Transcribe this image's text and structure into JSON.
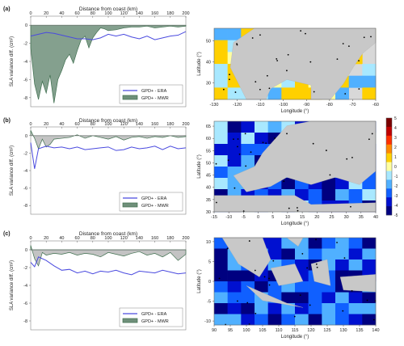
{
  "colors": {
    "era_line": "#4a4adf",
    "mwr_fill": "#6f8f7a",
    "mwr_stroke": "#3f6f4f",
    "land": "#c8c8c8",
    "sea_neutral": "#d8d8d8"
  },
  "colorbar": {
    "ticks": [
      "5",
      "4",
      "3",
      "2",
      "1",
      "0",
      "-1",
      "-2",
      "-3",
      "-4",
      "-5"
    ],
    "colors": [
      "#7a0000",
      "#c00000",
      "#ff3000",
      "#ff8800",
      "#ffd000",
      "#ffffa0",
      "#a8e8ff",
      "#50b0ff",
      "#1060ff",
      "#0010d0",
      "#000080"
    ],
    "range": [
      -5,
      5
    ]
  },
  "chart_data": [
    {
      "type": "line",
      "panel": "(a)",
      "xlabel": "Distance from coast (km)",
      "ylabel": "SLA variance diff. (cm²)",
      "x_ticks": [
        "0",
        "20",
        "40",
        "60",
        "80",
        "100",
        "120",
        "140",
        "160",
        "180",
        "200"
      ],
      "y_ticks": [
        "0",
        "-2",
        "-4",
        "-6",
        "-8"
      ],
      "xlim": [
        0,
        200
      ],
      "ylim": [
        -9,
        1
      ],
      "legend": [
        "GPD+ - ERA",
        "GPD+ - MWR"
      ],
      "legend_position": "bottom-right",
      "series": [
        {
          "name": "GPD+ - ERA",
          "x": [
            0,
            10,
            20,
            30,
            40,
            50,
            60,
            70,
            80,
            90,
            100,
            110,
            120,
            130,
            140,
            150,
            160,
            170,
            180,
            190,
            200
          ],
          "values": [
            -1.2,
            -1.0,
            -0.8,
            -0.9,
            -1.1,
            -1.3,
            -1.5,
            -1.5,
            -1.6,
            -1.4,
            -1.0,
            -1.2,
            -1.0,
            -1.3,
            -1.5,
            -1.2,
            -1.6,
            -1.4,
            -1.2,
            -1.1,
            -0.7
          ]
        },
        {
          "name": "GPD+ - MWR",
          "x": [
            0,
            5,
            10,
            15,
            20,
            25,
            30,
            35,
            40,
            45,
            50,
            55,
            60,
            65,
            70,
            75,
            80,
            85,
            90,
            95,
            100,
            110,
            120,
            130,
            140,
            150,
            160,
            170,
            180,
            190,
            200
          ],
          "values": [
            -2.5,
            -6.5,
            -8.2,
            -6.2,
            -7.5,
            -5.5,
            -8.6,
            -6.0,
            -5.0,
            -3.8,
            -3.2,
            -4.2,
            -2.8,
            -1.6,
            -1.2,
            -2.5,
            -1.4,
            -0.8,
            -0.3,
            -0.4,
            -0.6,
            -0.5,
            -0.3,
            -0.2,
            -0.2,
            -0.1,
            -0.3,
            -0.2,
            -0.1,
            -0.2,
            -0.1
          ]
        }
      ]
    },
    {
      "type": "line",
      "panel": "(b)",
      "xlabel": "Distance from coast (km)",
      "ylabel": "SLA variance diff. (cm²)",
      "x_ticks": [
        "0",
        "20",
        "40",
        "60",
        "80",
        "100",
        "120",
        "140",
        "160",
        "180",
        "200"
      ],
      "y_ticks": [
        "0",
        "-2",
        "-4",
        "-6",
        "-8"
      ],
      "xlim": [
        0,
        200
      ],
      "ylim": [
        -9,
        1
      ],
      "legend": [
        "GPD+ - ERA",
        "GPD+ - MWR"
      ],
      "legend_position": "bottom-right",
      "series": [
        {
          "name": "GPD+ - ERA",
          "x": [
            0,
            5,
            10,
            20,
            30,
            40,
            50,
            60,
            70,
            80,
            90,
            100,
            110,
            120,
            130,
            140,
            150,
            160,
            170,
            180,
            190,
            200
          ],
          "values": [
            -0.8,
            -3.8,
            -1.5,
            -1.2,
            -1.4,
            -1.3,
            -1.5,
            -1.3,
            -1.6,
            -1.5,
            -1.4,
            -1.3,
            -1.7,
            -1.6,
            -1.3,
            -1.5,
            -1.4,
            -1.2,
            -1.6,
            -1.2,
            -1.5,
            -1.4
          ]
        },
        {
          "name": "GPD+ - MWR",
          "x": [
            0,
            5,
            10,
            15,
            20,
            25,
            30,
            40,
            50,
            60,
            70,
            80,
            90,
            100,
            110,
            120,
            130,
            140,
            150,
            160,
            170,
            180,
            190,
            200
          ],
          "values": [
            0.6,
            -0.3,
            -1.5,
            -0.4,
            -1.3,
            -1.0,
            -0.4,
            -0.3,
            -0.2,
            0.1,
            -0.3,
            0.0,
            -0.2,
            -0.4,
            -0.1,
            -0.5,
            -0.2,
            -0.1,
            -0.3,
            -0.1,
            -0.2,
            0.0,
            -0.2,
            -0.1
          ]
        }
      ]
    },
    {
      "type": "line",
      "panel": "(c)",
      "xlabel": "Distance from coast (km)",
      "ylabel": "SLA variance diff. (cm²)",
      "x_ticks": [
        "0",
        "20",
        "40",
        "60",
        "80",
        "100",
        "120",
        "140",
        "160",
        "180",
        "200"
      ],
      "y_ticks": [
        "0",
        "-2",
        "-4",
        "-6",
        "-8"
      ],
      "xlim": [
        0,
        200
      ],
      "ylim": [
        -9,
        1
      ],
      "legend": [
        "GPD+ - ERA",
        "GPD+ - MWR"
      ],
      "legend_position": "bottom-right",
      "series": [
        {
          "name": "GPD+ - ERA",
          "x": [
            0,
            5,
            10,
            20,
            30,
            40,
            50,
            60,
            70,
            80,
            90,
            100,
            110,
            120,
            130,
            140,
            150,
            160,
            170,
            180,
            190,
            200
          ],
          "values": [
            -1.4,
            -1.9,
            -0.8,
            -1.2,
            -1.8,
            -2.3,
            -2.2,
            -2.6,
            -2.4,
            -2.7,
            -2.4,
            -2.5,
            -2.3,
            -2.6,
            -2.8,
            -2.4,
            -2.5,
            -2.6,
            -2.3,
            -2.5,
            -2.7,
            -2.6
          ]
        },
        {
          "name": "GPD+ - MWR",
          "x": [
            0,
            5,
            10,
            15,
            20,
            30,
            40,
            50,
            60,
            70,
            80,
            90,
            100,
            110,
            120,
            130,
            140,
            150,
            160,
            170,
            180,
            190,
            200
          ],
          "values": [
            0.5,
            -1.0,
            -1.8,
            -0.3,
            -0.6,
            -0.4,
            -0.5,
            -0.3,
            -0.6,
            -0.4,
            -0.5,
            -0.8,
            -0.3,
            -0.5,
            -0.7,
            -0.4,
            -0.2,
            -0.6,
            -0.4,
            -0.8,
            -0.3,
            -1.2,
            -0.5
          ]
        }
      ]
    },
    {
      "type": "heatmap",
      "panel": "(a) map",
      "xlabel": "Longitude (°)",
      "ylabel": "Latitude (°)",
      "x_ticks": [
        "-130",
        "-120",
        "-110",
        "-100",
        "-90",
        "-80",
        "-70",
        "-60"
      ],
      "y_ticks": [
        "50",
        "40",
        "30"
      ],
      "xlim": [
        -130,
        -60
      ],
      "ylim": [
        22,
        56
      ]
    },
    {
      "type": "heatmap",
      "panel": "(b) map",
      "xlabel": "Longitude (°)",
      "ylabel": "Latitude (°)",
      "x_ticks": [
        "-15",
        "-10",
        "-5",
        "0",
        "5",
        "10",
        "15",
        "20",
        "25",
        "30",
        "35",
        "40"
      ],
      "y_ticks": [
        "65",
        "60",
        "55",
        "50",
        "45",
        "40",
        "35",
        "30"
      ],
      "xlim": [
        -15,
        40
      ],
      "ylim": [
        30,
        67
      ]
    },
    {
      "type": "heatmap",
      "panel": "(c) map",
      "xlabel": "Longitude (°)",
      "ylabel": "Latitude (°)",
      "x_ticks": [
        "90",
        "95",
        "100",
        "105",
        "110",
        "115",
        "120",
        "125",
        "130",
        "135",
        "140"
      ],
      "y_ticks": [
        "10",
        "5",
        "0",
        "-5",
        "-10"
      ],
      "xlim": [
        90,
        140
      ],
      "ylim": [
        -11,
        11
      ]
    }
  ]
}
